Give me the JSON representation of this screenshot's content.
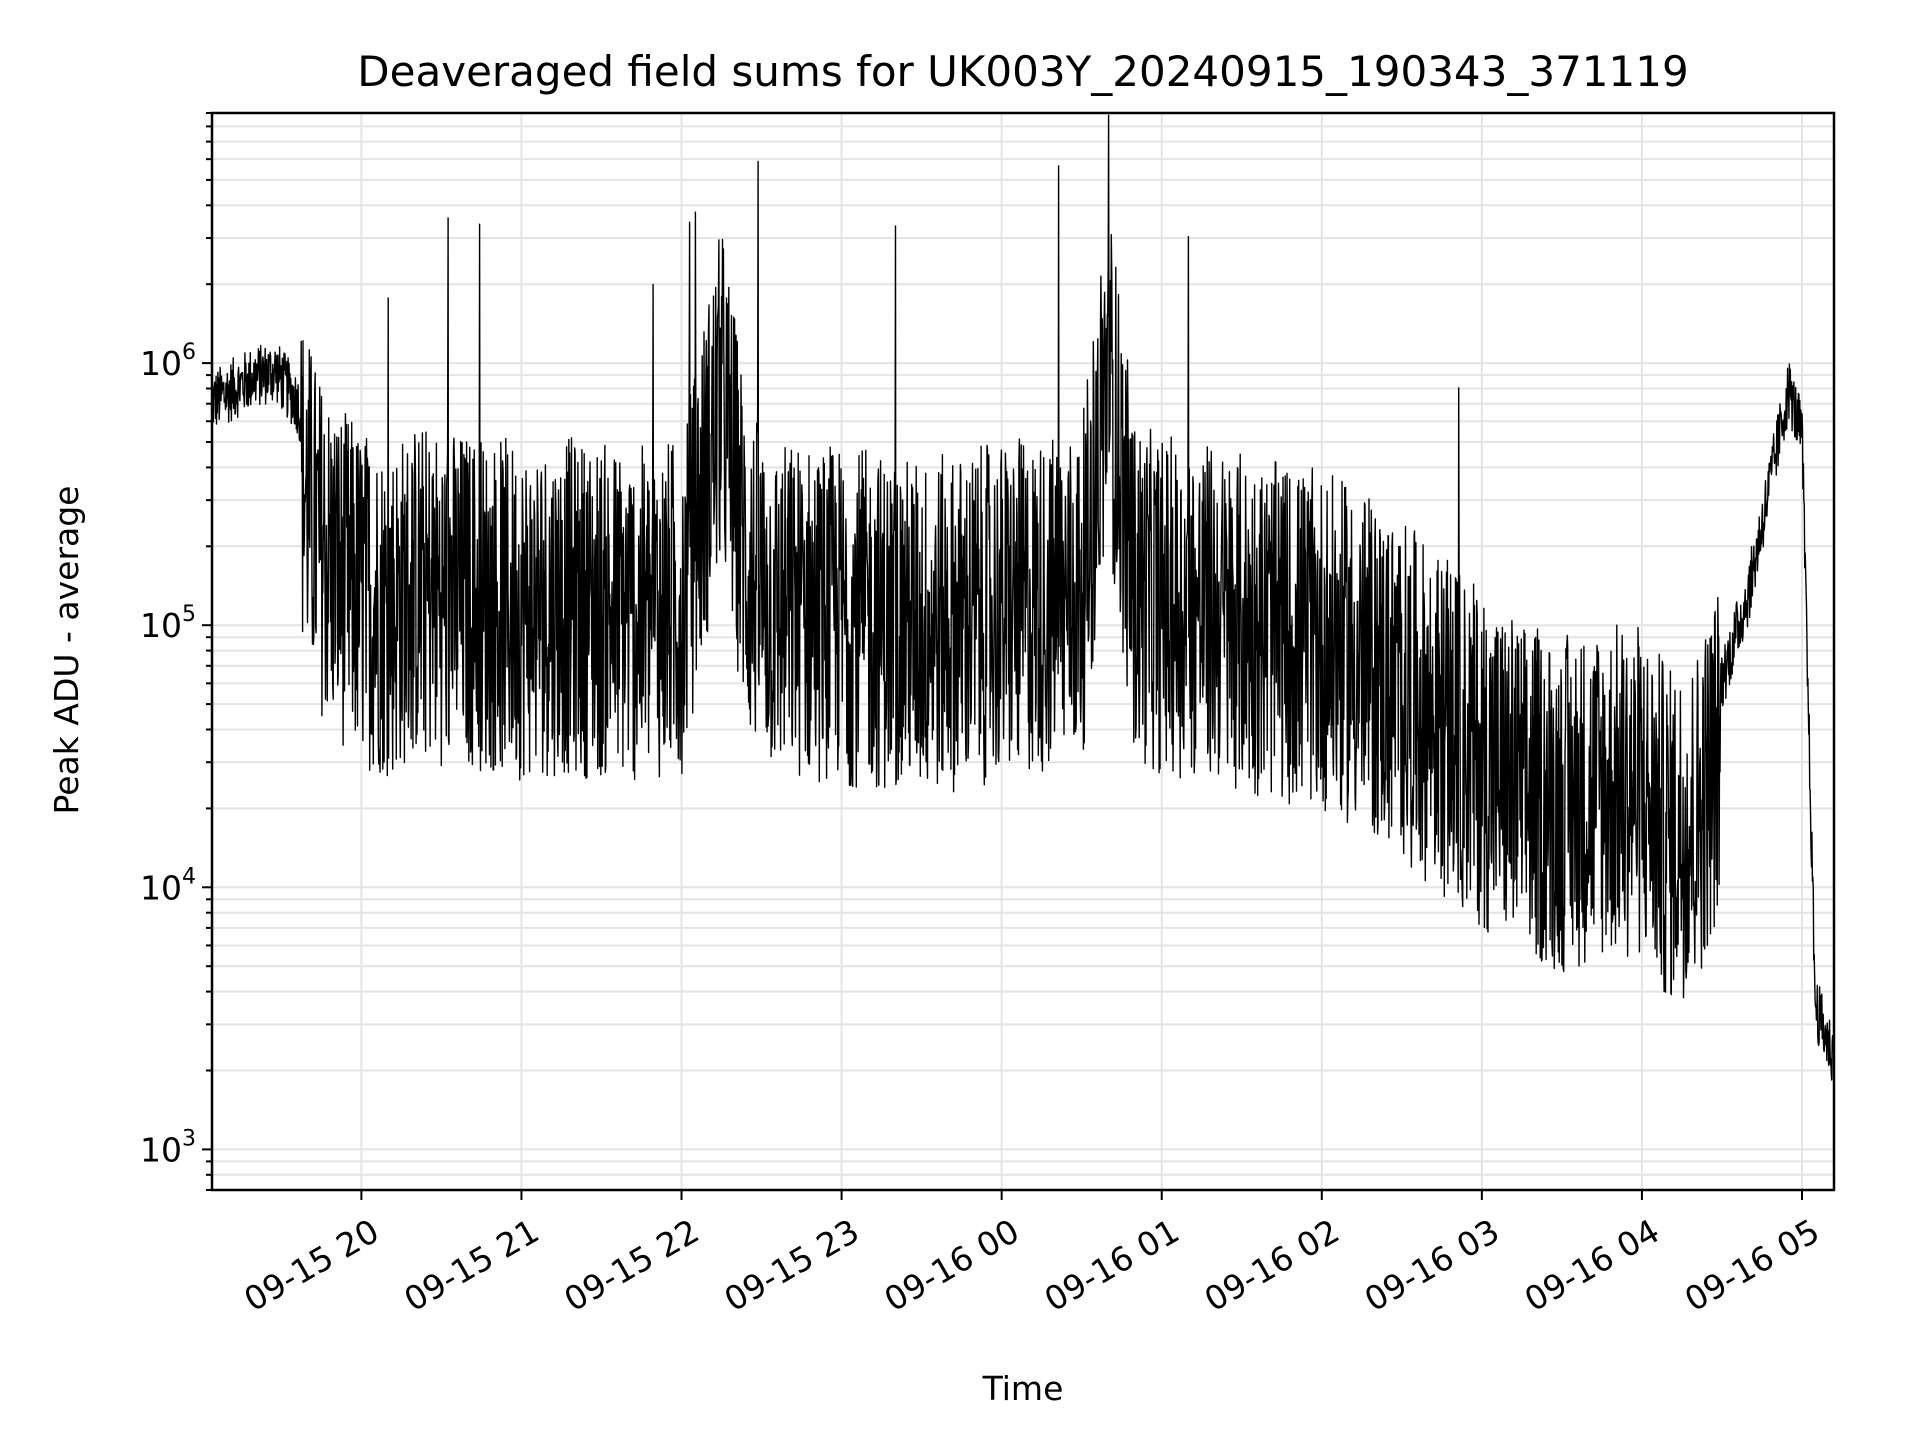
{
  "chart_data": {
    "type": "line",
    "title": "Deaveraged field sums for UK003Y_20240915_190343_371119",
    "xlabel": "Time",
    "ylabel": "Peak ADU - average",
    "x_range": [
      "2024-09-15 19:04",
      "2024-09-16 05:12"
    ],
    "x_ticks": [
      "09-15 20",
      "09-15 21",
      "09-15 22",
      "09-15 23",
      "09-16 00",
      "09-16 01",
      "09-16 02",
      "09-16 03",
      "09-16 04",
      "09-16 05"
    ],
    "y_scale": "log",
    "ylim": [
      700,
      9000000
    ],
    "y_ticks": [
      {
        "value": 1000,
        "base": "10",
        "exp": "3"
      },
      {
        "value": 10000,
        "base": "10",
        "exp": "4"
      },
      {
        "value": 100000,
        "base": "10",
        "exp": "5"
      },
      {
        "value": 1000000,
        "base": "10",
        "exp": "6"
      }
    ],
    "grid": "major and minor",
    "colors": {
      "line": "#000000",
      "grid": "#e4e4e4"
    },
    "series": [
      {
        "x": [
          "2024-09-15 19:04",
          "2024-09-15 19:12",
          "2024-09-15 19:20",
          "2024-09-15 19:28",
          "2024-09-15 19:36",
          "2024-09-15 19:44",
          "2024-09-15 19:52",
          "2024-09-15 20:00",
          "2024-09-15 20:10",
          "2024-09-15 20:20",
          "2024-09-15 20:30",
          "2024-09-15 20:40",
          "2024-09-15 20:50",
          "2024-09-15 21:00",
          "2024-09-15 21:15",
          "2024-09-15 21:30",
          "2024-09-15 21:45",
          "2024-09-15 22:00",
          "2024-09-15 22:15",
          "2024-09-15 22:25",
          "2024-09-15 22:35",
          "2024-09-15 22:45",
          "2024-09-15 23:00",
          "2024-09-15 23:15",
          "2024-09-15 23:30",
          "2024-09-15 23:45",
          "2024-09-16 00:00",
          "2024-09-16 00:15",
          "2024-09-16 00:30",
          "2024-09-16 00:40",
          "2024-09-16 00:50",
          "2024-09-16 01:00",
          "2024-09-16 01:15",
          "2024-09-16 01:30",
          "2024-09-16 01:45",
          "2024-09-16 02:00",
          "2024-09-16 02:15",
          "2024-09-16 02:30",
          "2024-09-16 02:45",
          "2024-09-16 03:00",
          "2024-09-16 03:15",
          "2024-09-16 03:30",
          "2024-09-16 03:45",
          "2024-09-16 04:00",
          "2024-09-16 04:10",
          "2024-09-16 04:20",
          "2024-09-16 04:30",
          "2024-09-16 04:40",
          "2024-09-16 04:50",
          "2024-09-16 04:55",
          "2024-09-16 05:00",
          "2024-09-16 05:05",
          "2024-09-16 05:12"
        ],
        "y": [
          800000,
          900000,
          1000000,
          1050000,
          800000,
          400000,
          300000,
          250000,
          220000,
          260000,
          250000,
          240000,
          230000,
          220000,
          230000,
          220000,
          210000,
          230000,
          1500000,
          300000,
          220000,
          220000,
          210000,
          200000,
          190000,
          200000,
          220000,
          230000,
          250000,
          1900000,
          260000,
          230000,
          220000,
          200000,
          180000,
          170000,
          140000,
          110000,
          80000,
          60000,
          45000,
          40000,
          45000,
          45000,
          30000,
          35000,
          70000,
          150000,
          500000,
          900000,
          600000,
          4000,
          2500
        ]
      }
    ]
  }
}
